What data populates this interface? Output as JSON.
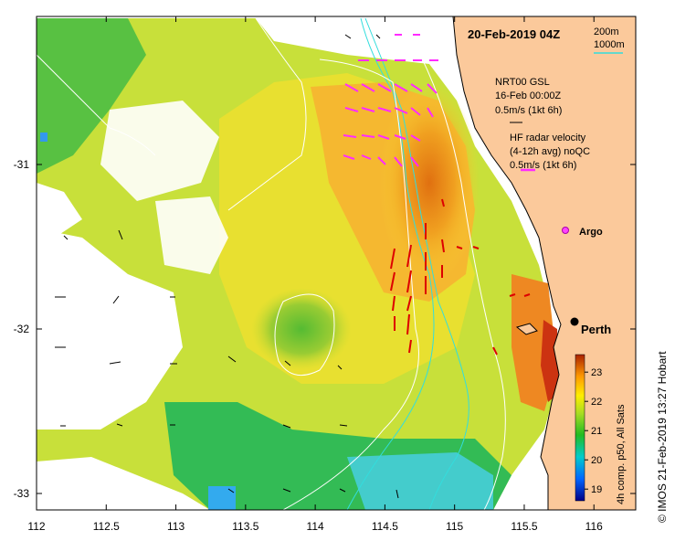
{
  "map": {
    "title": "20-Feb-2019 04Z",
    "place_label": "Perth",
    "argo_label": "Argo",
    "x_ticks": [
      "112",
      "112.5",
      "113",
      "113.5",
      "114",
      "114.5",
      "115",
      "115.5",
      "116"
    ],
    "y_ticks": [
      "-31",
      "-32",
      "-33"
    ],
    "lon_range": [
      112,
      116.3
    ],
    "lat_range": [
      -33.1,
      -30.1
    ],
    "copyright": "© IMOS 21-Feb-2019 13:27 Hobart"
  },
  "legend": {
    "contour_200": "200m",
    "contour_1000": "1000m",
    "ref_line1": "NRT00 GSL",
    "ref_line2": "16-Feb 00:00Z",
    "ref_line3": "0.5m/s (1kt 6h)",
    "radar_line1": "HF radar velocity",
    "radar_line2": "(4-12h avg) noQC",
    "radar_line3": "0.5m/s (1kt 6h)"
  },
  "colorbar": {
    "label": "4h comp. p50, All Sats",
    "ticks": [
      "19",
      "20",
      "21",
      "22",
      "23"
    ],
    "range": [
      18.6,
      23.6
    ]
  },
  "colors": {
    "land": "#fbc99b",
    "radar_arrow": "#ff2bff",
    "current_arrow": "#dd0000",
    "contour": "#33dddd"
  }
}
